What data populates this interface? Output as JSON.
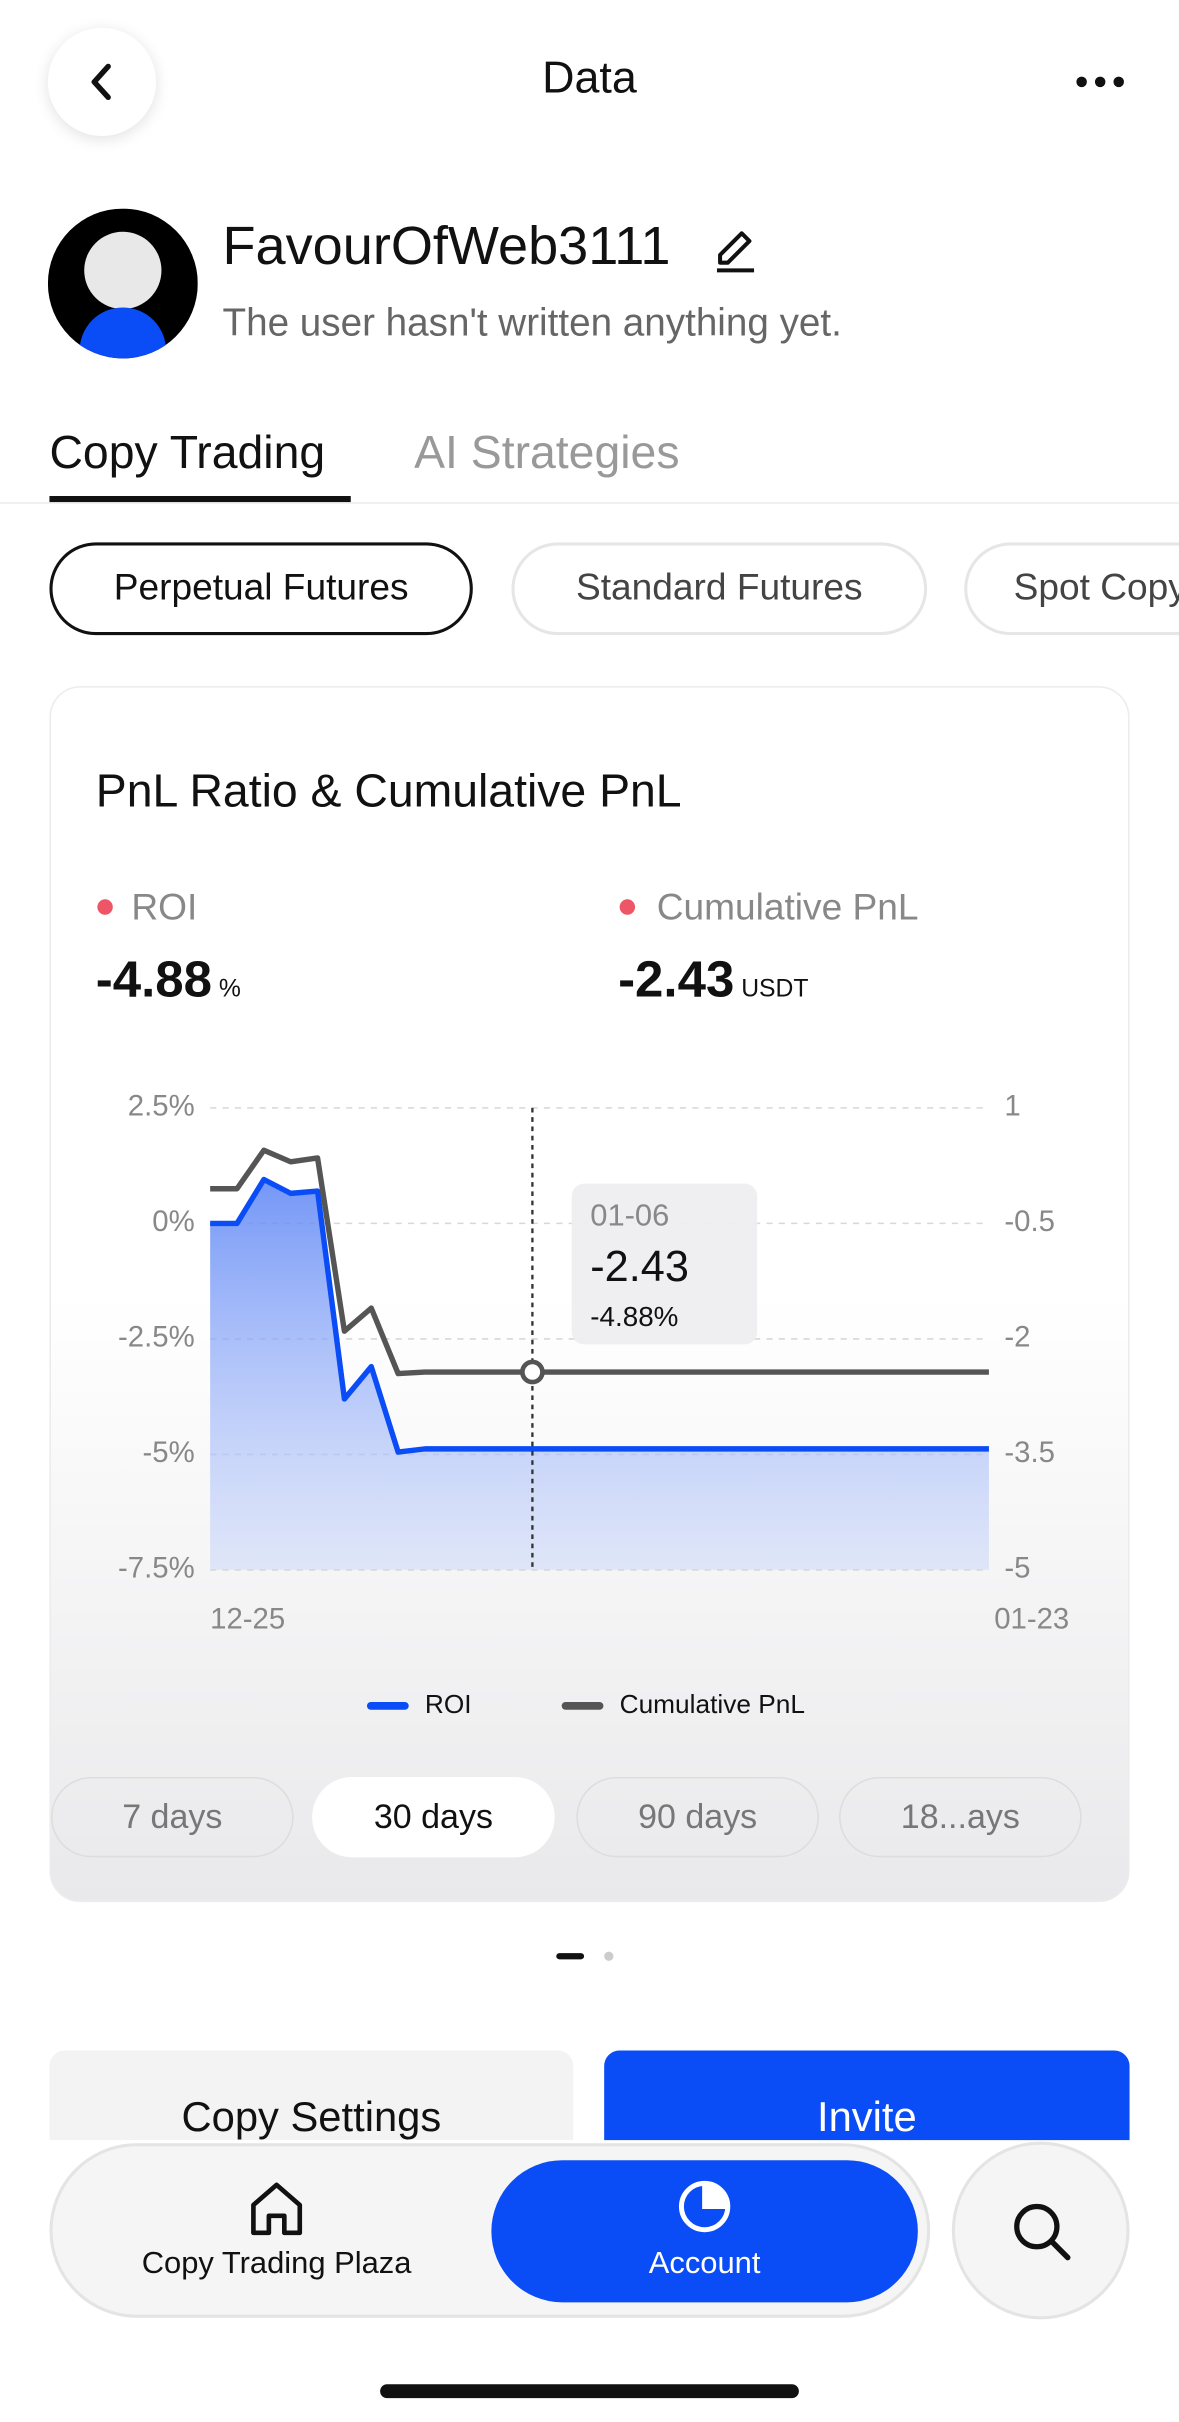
{
  "header": {
    "title": "Data"
  },
  "profile": {
    "name": "FavourOfWeb3111",
    "bio": "The user hasn't written anything yet."
  },
  "tabs": [
    "Copy Trading",
    "AI Strategies"
  ],
  "filters": [
    "Perpetual Futures",
    "Standard Futures",
    "Spot Copy Trading"
  ],
  "card": {
    "title": "PnL Ratio & Cumulative PnL",
    "metrics": [
      {
        "label": "ROI",
        "value": "-4.88",
        "unit": "%"
      },
      {
        "label": "Cumulative PnL",
        "value": "-2.43",
        "unit": "USDT"
      }
    ],
    "tooltip": {
      "date": "01-06",
      "value": "-2.43",
      "roi": "-4.88%"
    },
    "periods": [
      "7 days",
      "30 days",
      "90 days",
      "18...ays"
    ]
  },
  "chart_data": {
    "type": "line",
    "categories": [
      "12-25",
      null,
      null,
      null,
      null,
      null,
      null,
      null,
      null,
      null,
      null,
      null,
      null,
      null,
      null,
      null,
      null,
      null,
      null,
      null,
      null,
      null,
      null,
      null,
      null,
      null,
      null,
      null,
      null,
      "01-23"
    ],
    "series": [
      {
        "name": "ROI",
        "color": "#0a4cf5",
        "values": [
          0,
          0,
          0.95,
          0.65,
          0.7,
          -3.8,
          -3.1,
          -4.95,
          -4.88,
          -4.88,
          -4.88,
          -4.88,
          -4.88,
          -4.88,
          -4.88,
          -4.88,
          -4.88,
          -4.88,
          -4.88,
          -4.88,
          -4.88,
          -4.88,
          -4.88,
          -4.88,
          -4.88,
          -4.88,
          -4.88,
          -4.88,
          -4.88,
          -4.88
        ]
      },
      {
        "name": "Cumulative PnL",
        "color": "#555555",
        "axis": "y2",
        "values": [
          -0.05,
          -0.05,
          0.45,
          0.3,
          0.35,
          -1.9,
          -1.6,
          -2.45,
          -2.43,
          -2.43,
          -2.43,
          -2.43,
          -2.43,
          -2.43,
          -2.43,
          -2.43,
          -2.43,
          -2.43,
          -2.43,
          -2.43,
          -2.43,
          -2.43,
          -2.43,
          -2.43,
          -2.43,
          -2.43,
          -2.43,
          -2.43,
          -2.43,
          -2.43
        ]
      }
    ],
    "ylim": [
      -7.5,
      2.5
    ],
    "yticks": [
      {
        "value": -7.5,
        "label": "-7.5%"
      },
      {
        "value": -5,
        "label": "-5%"
      },
      {
        "value": -2.5,
        "label": "-2.5%"
      },
      {
        "value": 0,
        "label": "0%"
      },
      {
        "value": 2.5,
        "label": "2.5%"
      }
    ],
    "y2lim": [
      -5,
      1
    ],
    "y2ticks": [
      -5,
      -3.5,
      -2,
      -0.5,
      1
    ],
    "grid": true,
    "legend": "bottom"
  },
  "actions": [
    "Copy Settings",
    "Invite"
  ],
  "nav": [
    "Copy Trading Plaza",
    "Account"
  ]
}
